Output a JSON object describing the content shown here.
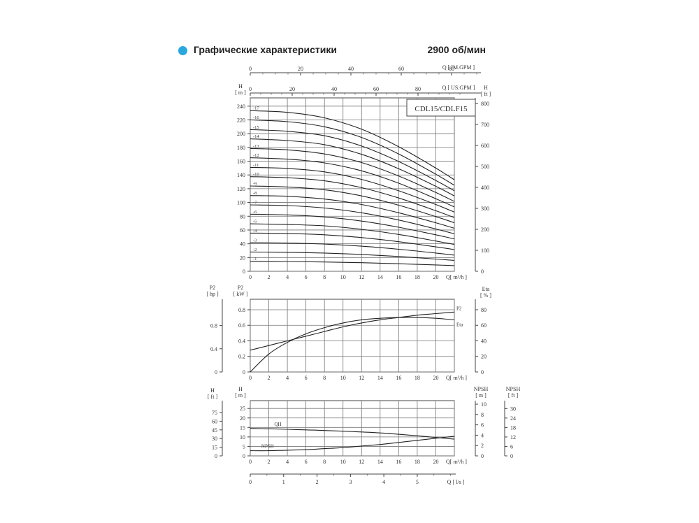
{
  "header": {
    "title": "Графические характеристики",
    "speed": "2900 об/мин",
    "accent_color": "#29a8df"
  },
  "chart_data": [
    {
      "type": "line",
      "model_label": "CDL15/CDLF15",
      "x": [
        0,
        4,
        8,
        12,
        16,
        20,
        22
      ],
      "xlabel": "Q[ m³/h ]",
      "xlim": [
        0,
        22
      ],
      "xticks": [
        0,
        2,
        4,
        6,
        8,
        10,
        12,
        14,
        16,
        18,
        20
      ],
      "ylabel_left_symbol": "H",
      "ylabel_left_unit": "[ m ]",
      "ylim": [
        0,
        240
      ],
      "yticks": [
        0,
        20,
        40,
        60,
        80,
        100,
        120,
        140,
        160,
        180,
        200,
        220,
        240
      ],
      "ylabel_right_symbol": "H",
      "ylabel_right_unit": "[ ft ]",
      "yticks_right": [
        0,
        100,
        200,
        300,
        400,
        500,
        600,
        700,
        800
      ],
      "top_axis_1": {
        "label": "Q [ IM.GPM ]",
        "ticks": [
          0,
          20,
          40,
          60,
          80
        ]
      },
      "top_axis_2": {
        "label": "Q [ US.GPM ]",
        "ticks": [
          0,
          20,
          40,
          60,
          80
        ]
      },
      "grid": true,
      "series": [
        {
          "name": "1",
          "values": [
            14.5,
            14.2,
            13.5,
            12.5,
            11.0,
            9.2,
            8.2
          ]
        },
        {
          "name": "2",
          "values": [
            28.0,
            27.5,
            26.5,
            24.5,
            21.5,
            17.8,
            15.8
          ]
        },
        {
          "name": "3",
          "values": [
            41.5,
            41.0,
            39.5,
            36.5,
            32.0,
            26.5,
            23.5
          ]
        },
        {
          "name": "4",
          "values": [
            55.5,
            55.0,
            53.0,
            49.0,
            43.0,
            35.5,
            31.5
          ]
        },
        {
          "name": "5",
          "values": [
            69.0,
            68.0,
            66.0,
            61.0,
            53.5,
            44.0,
            39.0
          ]
        },
        {
          "name": "6",
          "values": [
            83.0,
            82.0,
            79.0,
            73.0,
            64.0,
            53.0,
            47.0
          ]
        },
        {
          "name": "7",
          "values": [
            96.5,
            95.5,
            92.0,
            85.0,
            74.5,
            61.5,
            54.5
          ]
        },
        {
          "name": "8",
          "values": [
            110.0,
            109.0,
            105.0,
            97.0,
            85.0,
            70.5,
            62.5
          ]
        },
        {
          "name": "9",
          "values": [
            124.0,
            122.5,
            118.5,
            109.5,
            96.0,
            79.5,
            70.5
          ]
        },
        {
          "name": "10",
          "values": [
            137.5,
            136.0,
            131.5,
            121.5,
            106.5,
            88.0,
            78.0
          ]
        },
        {
          "name": "11",
          "values": [
            151.0,
            149.5,
            144.5,
            133.5,
            117.0,
            97.0,
            86.0
          ]
        },
        {
          "name": "12",
          "values": [
            165.0,
            163.0,
            157.5,
            146.0,
            128.0,
            105.5,
            93.5
          ]
        },
        {
          "name": "13",
          "values": [
            178.5,
            176.5,
            170.5,
            158.0,
            138.5,
            114.5,
            101.5
          ]
        },
        {
          "name": "14",
          "values": [
            192.5,
            190.0,
            184.0,
            170.0,
            149.0,
            123.5,
            109.5
          ]
        },
        {
          "name": "15",
          "values": [
            206.0,
            203.5,
            197.0,
            182.0,
            159.5,
            132.0,
            117.0
          ]
        },
        {
          "name": "16",
          "values": [
            220.0,
            217.5,
            210.0,
            194.5,
            170.5,
            141.0,
            125.0
          ]
        },
        {
          "name": "17",
          "values": [
            233.5,
            231.0,
            223.0,
            206.5,
            181.0,
            150.0,
            133.0
          ]
        }
      ]
    },
    {
      "type": "line",
      "x": [
        0,
        2,
        4,
        6,
        8,
        10,
        12,
        14,
        16,
        18,
        20,
        22
      ],
      "xlabel": "Q[ m³/h ]",
      "xlim": [
        0,
        22
      ],
      "xticks": [
        0,
        2,
        4,
        6,
        8,
        10,
        12,
        14,
        16,
        18,
        20
      ],
      "ylabel_left_symbol": "P2",
      "ylabel_left_unit": "[ kW ]",
      "ylim": [
        0,
        1.0
      ],
      "yticks": [
        0,
        0.2,
        0.4,
        0.6,
        0.8
      ],
      "ylabel_far_left_symbol": "P2",
      "ylabel_far_left_unit": "[ hp ]",
      "yticks_far_left": [
        0,
        0.4,
        0.8
      ],
      "ylabel_right_symbol": "Eta",
      "ylabel_right_unit": "[ % ]",
      "yticks_right": [
        0,
        20,
        40,
        60,
        80
      ],
      "grid": true,
      "series": [
        {
          "name": "P2",
          "values": [
            0.28,
            0.34,
            0.4,
            0.46,
            0.52,
            0.58,
            0.63,
            0.67,
            0.7,
            0.73,
            0.75,
            0.77
          ]
        },
        {
          "name": "Eta",
          "values": [
            0,
            23,
            38,
            49,
            57,
            63,
            67,
            69,
            70,
            70,
            69,
            67
          ]
        }
      ]
    },
    {
      "type": "line",
      "x": [
        0,
        2,
        4,
        6,
        8,
        10,
        12,
        14,
        16,
        18,
        20,
        22
      ],
      "xlabel": "Q[ m³/h ]",
      "xlim": [
        0,
        22
      ],
      "xticks": [
        0,
        2,
        4,
        6,
        8,
        10,
        12,
        14,
        16,
        18,
        20
      ],
      "ylabel_left_symbol": "H",
      "ylabel_left_unit": "[ m ]",
      "ylim": [
        0,
        30
      ],
      "yticks": [
        0,
        5,
        10,
        15,
        20,
        25
      ],
      "ylabel_far_left_symbol": "H",
      "ylabel_far_left_unit": "[ ft ]",
      "yticks_far_left": [
        0,
        15,
        30,
        45,
        60,
        75
      ],
      "ylabel_right_symbol": "NPSH",
      "ylabel_right_unit": "[ m ]",
      "yticks_right": [
        0,
        2,
        4,
        6,
        8,
        10
      ],
      "ylabel_far_right_symbol": "NPSH",
      "ylabel_far_right_unit": "[ ft ]",
      "yticks_far_right": [
        0,
        6,
        12,
        18,
        24,
        30
      ],
      "bottom_axis": {
        "label": "Q [ l/s ]",
        "ticks": [
          0,
          1,
          2,
          3,
          4,
          5
        ]
      },
      "grid": true,
      "series": [
        {
          "name": "QH",
          "values": [
            14.5,
            14.3,
            14.0,
            13.7,
            13.4,
            13.0,
            12.6,
            12.1,
            11.4,
            10.6,
            9.7,
            8.8
          ]
        },
        {
          "name": "NPSH",
          "values": [
            1.0,
            1.0,
            1.1,
            1.2,
            1.4,
            1.6,
            1.9,
            2.2,
            2.6,
            3.0,
            3.4,
            3.8
          ]
        }
      ]
    }
  ]
}
